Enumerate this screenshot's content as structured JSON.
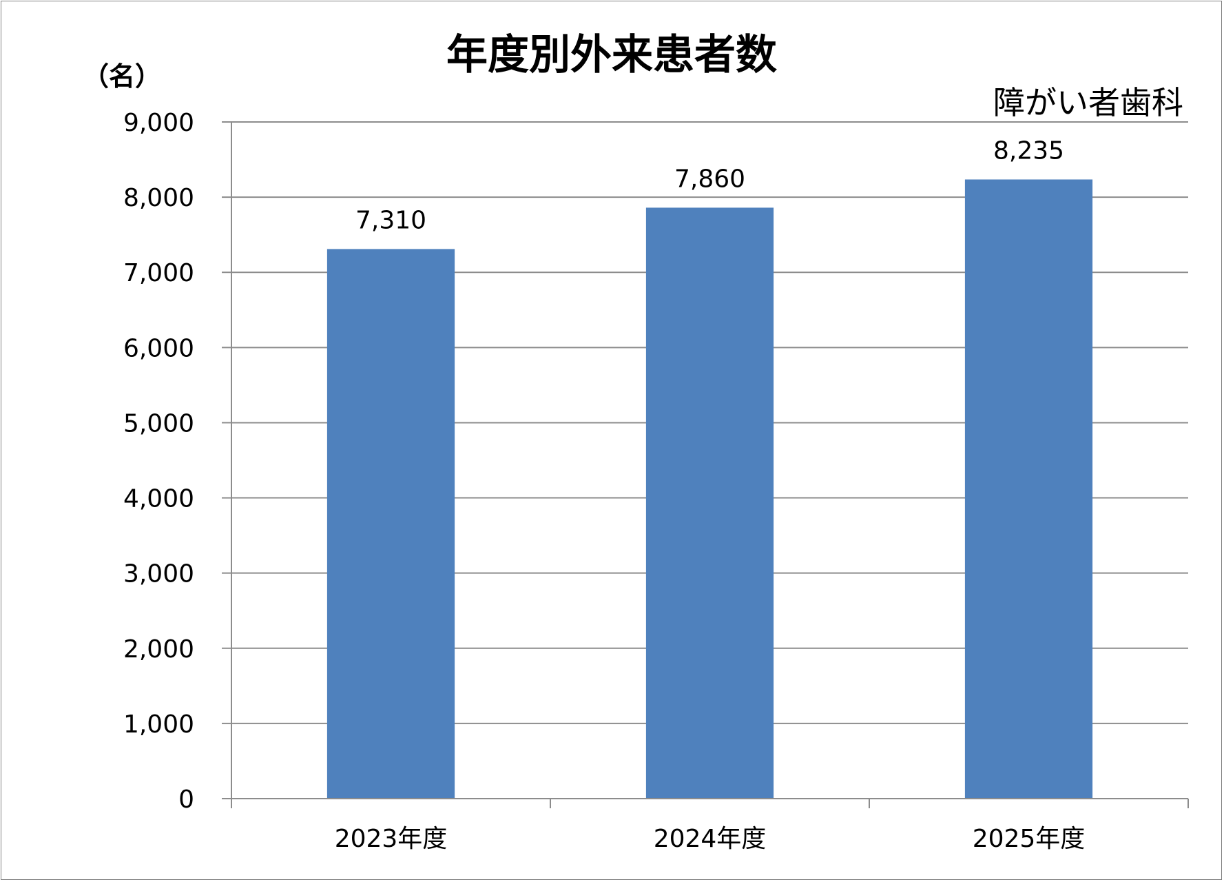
{
  "chart_data": {
    "type": "bar",
    "title": "年度別外来患者数",
    "subtitle": "障がい者歯科",
    "ylabel": "（名）",
    "xlabel": "",
    "categories": [
      "2023年度",
      "2024年度",
      "2025年度"
    ],
    "values": [
      7310,
      7860,
      8235
    ],
    "data_labels": [
      "7,310",
      "7,860",
      "8,235"
    ],
    "ylim": [
      0,
      9000
    ],
    "yticks": [
      0,
      1000,
      2000,
      3000,
      4000,
      5000,
      6000,
      7000,
      8000,
      9000
    ],
    "ytick_labels": [
      "0",
      "1,000",
      "2,000",
      "3,000",
      "4,000",
      "5,000",
      "6,000",
      "7,000",
      "8,000",
      "9,000"
    ],
    "grid": true,
    "legend": false,
    "colors": {
      "bar": "#4f81bd",
      "grid": "#8c8c8c",
      "axis": "#8c8c8c",
      "frame": "#7f7f7f"
    }
  }
}
